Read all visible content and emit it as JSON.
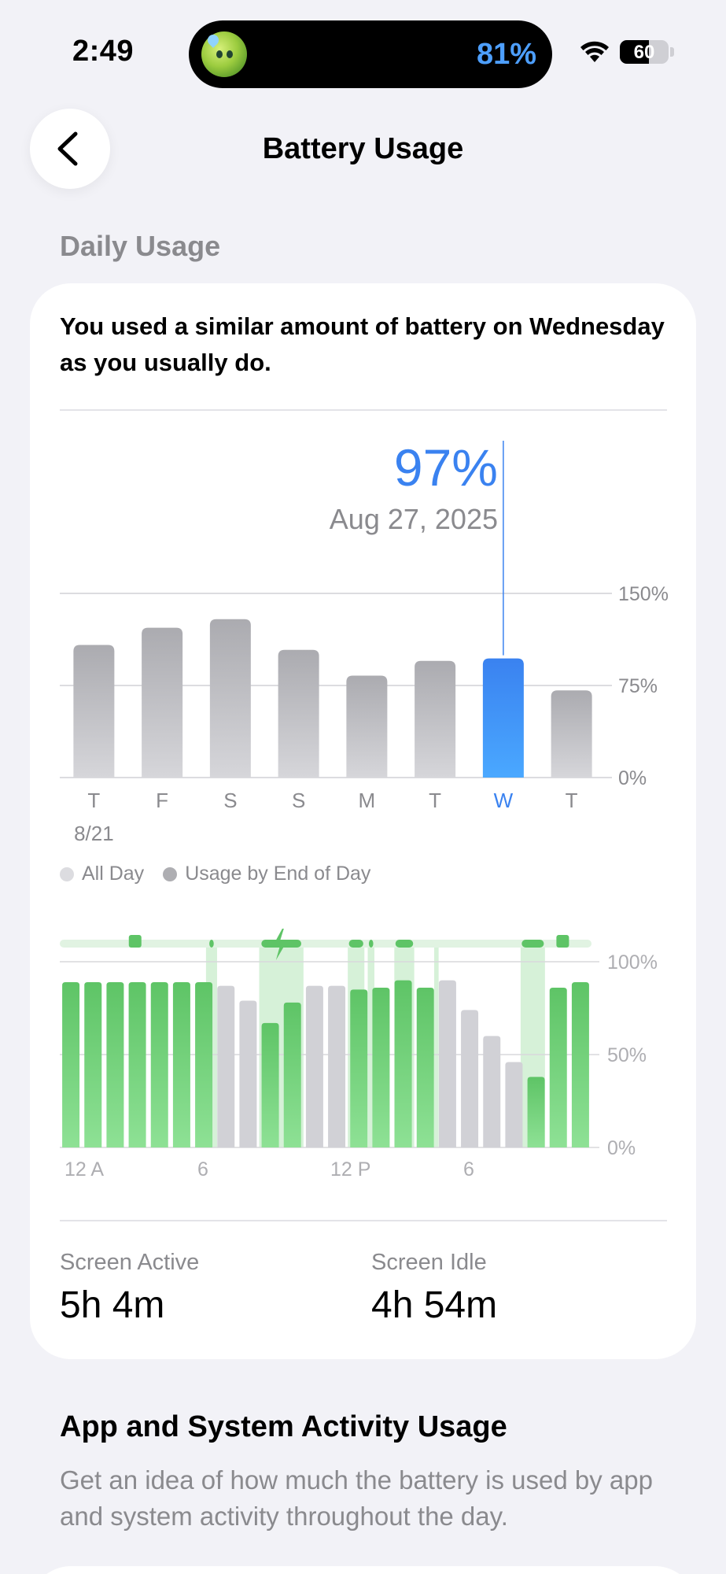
{
  "status_bar": {
    "time": "2:49",
    "island_percent": "81%",
    "battery_level": "60",
    "battery_fraction": 0.6,
    "icons": [
      "avatar-icon",
      "wifi-icon",
      "battery-icon"
    ]
  },
  "nav": {
    "back_icon": "chevron-left-icon",
    "title": "Battery Usage"
  },
  "section_header": "Daily Usage",
  "card": {
    "message": "You used a similar amount of battery on Wednesday as you usually do.",
    "selection": {
      "value": "97%",
      "date": "Aug 27, 2025"
    },
    "screen_active": {
      "label": "Screen Active",
      "value": "5h 4m"
    },
    "screen_idle": {
      "label": "Screen Idle",
      "value": "4h 54m"
    }
  },
  "legend": {
    "all_day": "All Day",
    "end_of_day": "Usage by End of Day",
    "all_day_color": "#dcdce0",
    "end_of_day_color": "#aeaeb2"
  },
  "colors": {
    "accent": "#3a82f0",
    "bar_gray": "#b4b4b9",
    "battery_green": "#5ec466",
    "battery_gray": "#d1d1d6",
    "charging_band": "#d6f1d8"
  },
  "chart_data": [
    {
      "type": "bar",
      "categories": [
        "T",
        "F",
        "S",
        "S",
        "M",
        "T",
        "W",
        "T"
      ],
      "sublabels": [
        "8/21",
        "",
        "",
        "",
        "",
        "",
        "",
        ""
      ],
      "values": [
        108,
        122,
        129,
        104,
        83,
        95,
        97,
        71
      ],
      "selected_index": 6,
      "ylim": [
        0,
        150
      ],
      "yticks": [
        "150%",
        "75%",
        "0%"
      ],
      "ytick_values": [
        150,
        75,
        0
      ],
      "grid": true
    },
    {
      "type": "bar",
      "xticks": [
        "12 A",
        "6",
        "12 P",
        "6"
      ],
      "xtick_hours": [
        0,
        6,
        12,
        18
      ],
      "yticks": [
        "100%",
        "50%",
        "0%"
      ],
      "ytick_values": [
        100,
        50,
        0
      ],
      "ylim": [
        0,
        100
      ],
      "hours": 24,
      "values": [
        89,
        89,
        89,
        89,
        89,
        89,
        89,
        87,
        79,
        67,
        78,
        87,
        87,
        85,
        86,
        90,
        86,
        90,
        74,
        60,
        46,
        38,
        86,
        89
      ],
      "colors": [
        "green",
        "green",
        "green",
        "green",
        "green",
        "green",
        "green",
        "gray",
        "gray",
        "green",
        "green",
        "gray",
        "gray",
        "green",
        "green",
        "green",
        "green",
        "gray",
        "gray",
        "gray",
        "gray",
        "green",
        "green",
        "green"
      ],
      "charging_intervals": [
        [
          6.6,
          7.1
        ],
        [
          9.0,
          11.0
        ],
        [
          13.0,
          13.75
        ],
        [
          13.9,
          14.2
        ],
        [
          15.1,
          16.0
        ],
        [
          16.9,
          17.1
        ],
        [
          20.8,
          21.9
        ]
      ],
      "plugged_segments": [
        [
          6.75,
          6.95
        ],
        [
          9.1,
          10.9
        ],
        [
          13.05,
          13.7
        ],
        [
          13.95,
          14.15
        ],
        [
          15.15,
          15.95
        ],
        [
          20.85,
          21.85
        ]
      ],
      "charging_markers": [
        3.4,
        22.7
      ],
      "grid": true
    }
  ]
}
